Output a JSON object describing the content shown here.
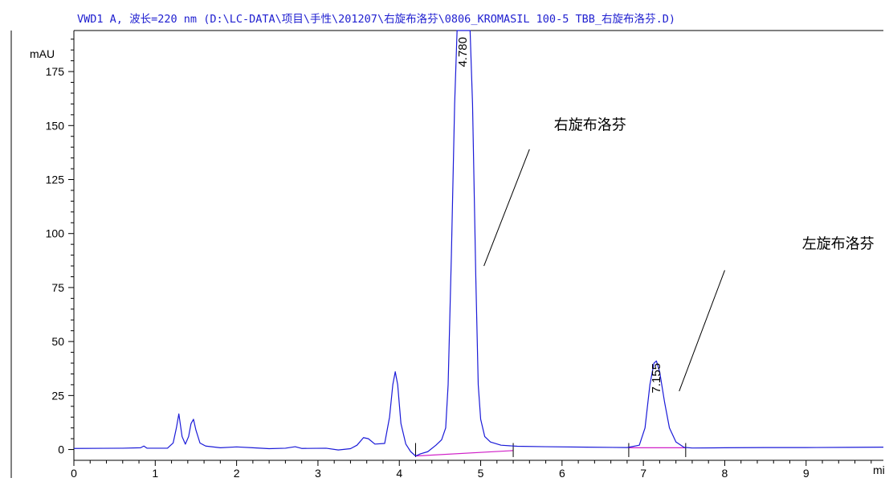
{
  "chart_data": {
    "type": "line",
    "title": "VWD1 A, 波长=220 nm (D:\\LC-DATA\\项目\\手性\\201207\\右旋布洛芬\\0806_KROMASIL 100-5 TBB_右旋布洛芬.D)",
    "ylabel": "mAU",
    "xlabel": "mi",
    "xlim": [
      0,
      9.95
    ],
    "ylim": [
      -5,
      194
    ],
    "x_ticks": [
      0,
      1,
      2,
      3,
      4,
      5,
      6,
      7,
      8,
      9
    ],
    "y_ticks": [
      0,
      25,
      50,
      75,
      100,
      125,
      150,
      175
    ],
    "series": [
      {
        "color": "#1a1ad8",
        "points": [
          [
            0,
            0.5
          ],
          [
            0.6,
            0.6
          ],
          [
            0.82,
            0.8
          ],
          [
            0.86,
            1.6
          ],
          [
            0.9,
            0.6
          ],
          [
            1.15,
            0.6
          ],
          [
            1.22,
            3
          ],
          [
            1.26,
            10
          ],
          [
            1.29,
            16.5
          ],
          [
            1.33,
            6
          ],
          [
            1.37,
            2.5
          ],
          [
            1.41,
            6
          ],
          [
            1.44,
            12
          ],
          [
            1.47,
            14
          ],
          [
            1.5,
            9
          ],
          [
            1.55,
            3
          ],
          [
            1.62,
            1.6
          ],
          [
            1.8,
            0.8
          ],
          [
            2.0,
            1.2
          ],
          [
            2.2,
            0.8
          ],
          [
            2.4,
            0.4
          ],
          [
            2.6,
            0.6
          ],
          [
            2.72,
            1.3
          ],
          [
            2.8,
            0.5
          ],
          [
            3.1,
            0.6
          ],
          [
            3.25,
            -0.2
          ],
          [
            3.4,
            0.4
          ],
          [
            3.48,
            2
          ],
          [
            3.56,
            5.5
          ],
          [
            3.62,
            5
          ],
          [
            3.7,
            2.5
          ],
          [
            3.82,
            2.8
          ],
          [
            3.88,
            15
          ],
          [
            3.92,
            30
          ],
          [
            3.95,
            36
          ],
          [
            3.98,
            30
          ],
          [
            4.02,
            12
          ],
          [
            4.08,
            2.5
          ],
          [
            4.14,
            -1
          ],
          [
            4.2,
            -3
          ],
          [
            4.26,
            -2
          ],
          [
            4.35,
            -1
          ],
          [
            4.45,
            2
          ],
          [
            4.52,
            4.5
          ],
          [
            4.57,
            10
          ],
          [
            4.6,
            30
          ],
          [
            4.64,
            90
          ],
          [
            4.68,
            160
          ],
          [
            4.71,
            194
          ],
          [
            4.87,
            194
          ],
          [
            4.9,
            160
          ],
          [
            4.94,
            80
          ],
          [
            4.97,
            30
          ],
          [
            5.0,
            14
          ],
          [
            5.05,
            6
          ],
          [
            5.12,
            3.5
          ],
          [
            5.25,
            2
          ],
          [
            5.45,
            1.5
          ],
          [
            5.8,
            1.3
          ],
          [
            6.3,
            1.1
          ],
          [
            6.8,
            0.9
          ],
          [
            6.95,
            2
          ],
          [
            7.02,
            10
          ],
          [
            7.08,
            30
          ],
          [
            7.13,
            40
          ],
          [
            7.16,
            41
          ],
          [
            7.2,
            36
          ],
          [
            7.26,
            22
          ],
          [
            7.32,
            10
          ],
          [
            7.4,
            3.5
          ],
          [
            7.5,
            1
          ],
          [
            7.6,
            0.7
          ],
          [
            8.0,
            0.8
          ],
          [
            8.5,
            0.9
          ],
          [
            9.0,
            0.9
          ],
          [
            9.5,
            1.0
          ],
          [
            9.95,
            1.1
          ]
        ]
      }
    ],
    "baselines": [
      {
        "color": "#d020c8",
        "points": [
          [
            4.2,
            -3
          ],
          [
            5.4,
            -0.5
          ]
        ]
      },
      {
        "color": "#d020c8",
        "points": [
          [
            6.82,
            0.8
          ],
          [
            7.52,
            0.8
          ]
        ]
      }
    ],
    "integration_marks": [
      4.2,
      5.4,
      6.82,
      7.52
    ],
    "peak_labels": [
      {
        "text": "4.780",
        "x": 4.78,
        "y": 194
      },
      {
        "text": "7.155",
        "x": 7.155,
        "y": 43
      }
    ],
    "annotations": [
      {
        "text": "右旋布洛芬",
        "x": 5.9,
        "y": 148,
        "line_from": [
          5.6,
          139
        ],
        "line_to": [
          5.04,
          85
        ]
      },
      {
        "text": "左旋布洛芬",
        "x": 8.95,
        "y": 93,
        "line_from": [
          8.0,
          83
        ],
        "line_to": [
          7.44,
          27
        ]
      }
    ],
    "grid": false
  }
}
